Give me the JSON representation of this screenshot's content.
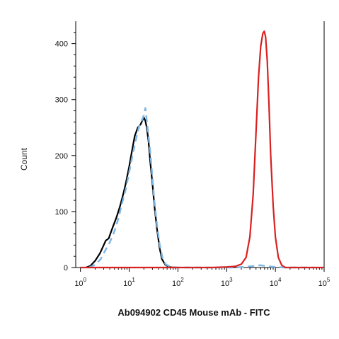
{
  "chart_data": {
    "type": "line",
    "title": "",
    "xlabel": "Ab094902 CD45 Mouse mAb - FITC",
    "ylabel": "Count",
    "x_scale": "log",
    "xlim": [
      0.8,
      100000
    ],
    "ylim": [
      0,
      440
    ],
    "x_ticks": [
      {
        "base": "10",
        "exp": "0",
        "value": 1
      },
      {
        "base": "10",
        "exp": "1",
        "value": 10
      },
      {
        "base": "10",
        "exp": "2",
        "value": 100
      },
      {
        "base": "10",
        "exp": "3",
        "value": 1000
      },
      {
        "base": "10",
        "exp": "4",
        "value": 10000
      },
      {
        "base": "10",
        "exp": "5",
        "value": 100000
      }
    ],
    "y_ticks": [
      {
        "label": "0",
        "value": 0
      },
      {
        "label": "100",
        "value": 100
      },
      {
        "label": "200",
        "value": 200
      },
      {
        "label": "300",
        "value": 300
      },
      {
        "label": "400",
        "value": 400
      }
    ],
    "grid": false,
    "legend": "none",
    "series": [
      {
        "color": "#000000",
        "style": "solid",
        "points": [
          [
            1.3,
            0
          ],
          [
            1.6,
            3
          ],
          [
            2.0,
            12
          ],
          [
            2.5,
            25
          ],
          [
            3.0,
            40
          ],
          [
            3.3,
            48
          ],
          [
            3.8,
            52
          ],
          [
            4.5,
            70
          ],
          [
            5.5,
            90
          ],
          [
            6.5,
            110
          ],
          [
            7.5,
            130
          ],
          [
            8.5,
            150
          ],
          [
            10,
            180
          ],
          [
            11.5,
            210
          ],
          [
            13,
            235
          ],
          [
            15,
            250
          ],
          [
            17,
            255
          ],
          [
            18.5,
            262
          ],
          [
            20,
            268
          ],
          [
            21.5,
            262
          ],
          [
            23,
            250
          ],
          [
            25,
            225
          ],
          [
            27,
            190
          ],
          [
            30,
            150
          ],
          [
            33,
            110
          ],
          [
            37,
            70
          ],
          [
            42,
            35
          ],
          [
            47,
            15
          ],
          [
            55,
            5
          ],
          [
            65,
            1
          ],
          [
            80,
            0
          ]
        ]
      },
      {
        "color": "#7fb8e6",
        "style": "dashed",
        "points": [
          [
            1.5,
            0
          ],
          [
            2.0,
            5
          ],
          [
            2.6,
            15
          ],
          [
            3.2,
            30
          ],
          [
            4.0,
            45
          ],
          [
            5.0,
            65
          ],
          [
            6.0,
            88
          ],
          [
            7.0,
            112
          ],
          [
            8.5,
            140
          ],
          [
            10,
            170
          ],
          [
            12,
            205
          ],
          [
            14,
            232
          ],
          [
            16,
            252
          ],
          [
            18,
            262
          ],
          [
            20,
            272
          ],
          [
            21.5,
            285
          ],
          [
            23,
            262
          ],
          [
            25,
            235
          ],
          [
            27.5,
            200
          ],
          [
            30,
            160
          ],
          [
            33,
            118
          ],
          [
            37,
            78
          ],
          [
            42,
            42
          ],
          [
            48,
            18
          ],
          [
            56,
            6
          ],
          [
            70,
            1
          ],
          [
            100,
            0
          ],
          [
            400,
            0
          ],
          [
            1500,
            0
          ],
          [
            3000,
            2
          ],
          [
            5000,
            4
          ],
          [
            7000,
            2
          ],
          [
            15000,
            0
          ],
          [
            60000,
            0
          ]
        ]
      },
      {
        "color": "#d92020",
        "style": "solid",
        "points": [
          [
            1,
            0
          ],
          [
            500,
            0
          ],
          [
            1000,
            1
          ],
          [
            1500,
            2
          ],
          [
            2000,
            6
          ],
          [
            2500,
            18
          ],
          [
            3000,
            55
          ],
          [
            3500,
            130
          ],
          [
            4000,
            240
          ],
          [
            4500,
            340
          ],
          [
            5000,
            395
          ],
          [
            5500,
            418
          ],
          [
            5900,
            422
          ],
          [
            6300,
            412
          ],
          [
            6800,
            370
          ],
          [
            7400,
            290
          ],
          [
            8000,
            200
          ],
          [
            9000,
            110
          ],
          [
            10000,
            55
          ],
          [
            11500,
            18
          ],
          [
            13500,
            4
          ],
          [
            16000,
            0
          ],
          [
            100000,
            0
          ]
        ]
      }
    ]
  }
}
